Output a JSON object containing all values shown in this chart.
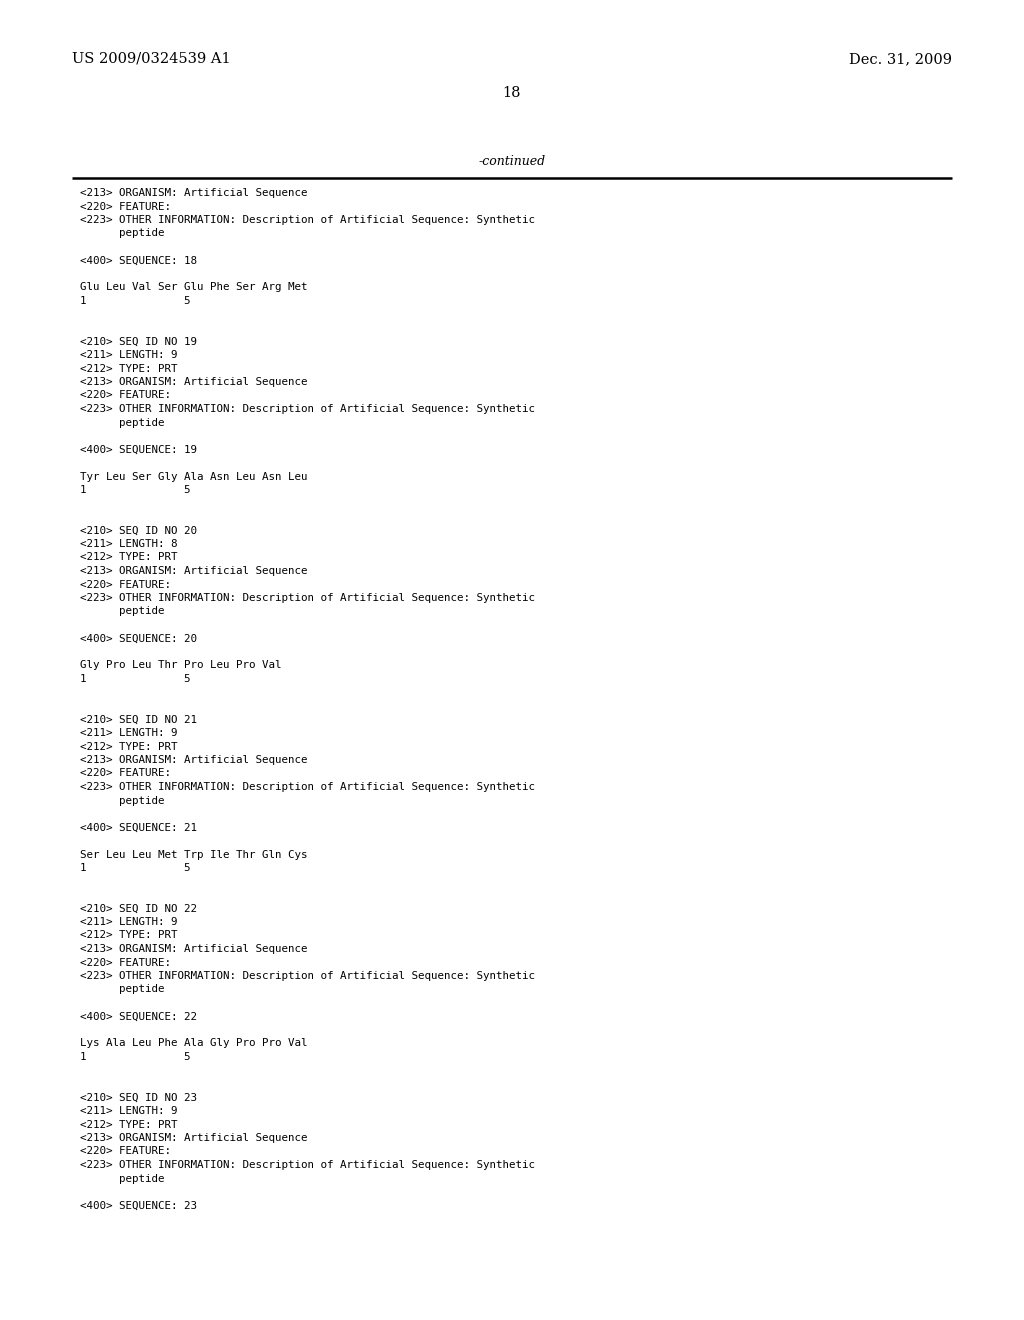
{
  "background_color": "#ffffff",
  "header_left": "US 2009/0324539 A1",
  "header_right": "Dec. 31, 2009",
  "page_number": "18",
  "continued_label": "-continued",
  "figwidth": 10.24,
  "figheight": 13.2,
  "dpi": 100,
  "content_lines": [
    "<213> ORGANISM: Artificial Sequence",
    "<220> FEATURE:",
    "<223> OTHER INFORMATION: Description of Artificial Sequence: Synthetic",
    "      peptide",
    "",
    "<400> SEQUENCE: 18",
    "",
    "Glu Leu Val Ser Glu Phe Ser Arg Met",
    "1               5",
    "",
    "",
    "<210> SEQ ID NO 19",
    "<211> LENGTH: 9",
    "<212> TYPE: PRT",
    "<213> ORGANISM: Artificial Sequence",
    "<220> FEATURE:",
    "<223> OTHER INFORMATION: Description of Artificial Sequence: Synthetic",
    "      peptide",
    "",
    "<400> SEQUENCE: 19",
    "",
    "Tyr Leu Ser Gly Ala Asn Leu Asn Leu",
    "1               5",
    "",
    "",
    "<210> SEQ ID NO 20",
    "<211> LENGTH: 8",
    "<212> TYPE: PRT",
    "<213> ORGANISM: Artificial Sequence",
    "<220> FEATURE:",
    "<223> OTHER INFORMATION: Description of Artificial Sequence: Synthetic",
    "      peptide",
    "",
    "<400> SEQUENCE: 20",
    "",
    "Gly Pro Leu Thr Pro Leu Pro Val",
    "1               5",
    "",
    "",
    "<210> SEQ ID NO 21",
    "<211> LENGTH: 9",
    "<212> TYPE: PRT",
    "<213> ORGANISM: Artificial Sequence",
    "<220> FEATURE:",
    "<223> OTHER INFORMATION: Description of Artificial Sequence: Synthetic",
    "      peptide",
    "",
    "<400> SEQUENCE: 21",
    "",
    "Ser Leu Leu Met Trp Ile Thr Gln Cys",
    "1               5",
    "",
    "",
    "<210> SEQ ID NO 22",
    "<211> LENGTH: 9",
    "<212> TYPE: PRT",
    "<213> ORGANISM: Artificial Sequence",
    "<220> FEATURE:",
    "<223> OTHER INFORMATION: Description of Artificial Sequence: Synthetic",
    "      peptide",
    "",
    "<400> SEQUENCE: 22",
    "",
    "Lys Ala Leu Phe Ala Gly Pro Pro Val",
    "1               5",
    "",
    "",
    "<210> SEQ ID NO 23",
    "<211> LENGTH: 9",
    "<212> TYPE: PRT",
    "<213> ORGANISM: Artificial Sequence",
    "<220> FEATURE:",
    "<223> OTHER INFORMATION: Description of Artificial Sequence: Synthetic",
    "      peptide",
    "",
    "<400> SEQUENCE: 23"
  ]
}
